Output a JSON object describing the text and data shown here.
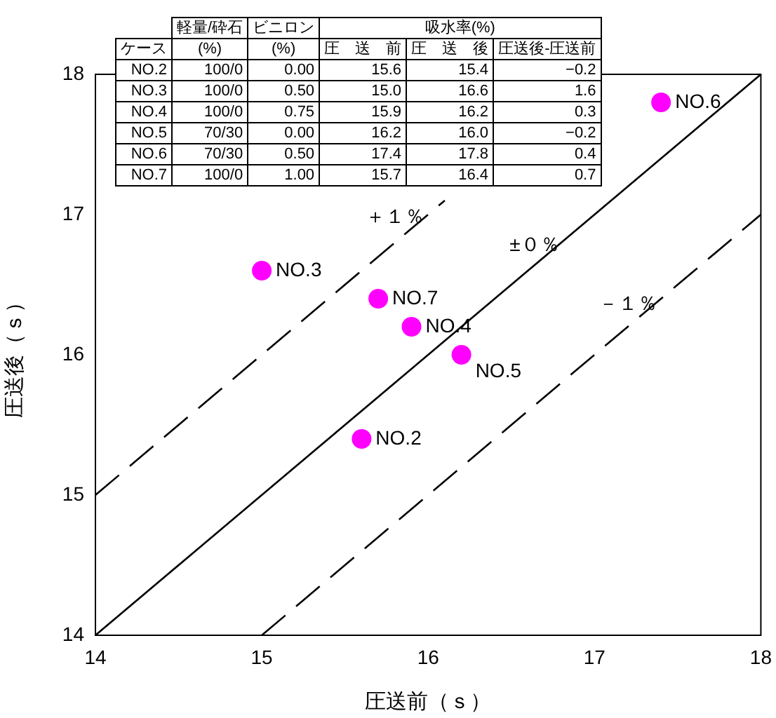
{
  "chart_data": {
    "type": "scatter",
    "xlabel": "圧送前（ｓ）",
    "ylabel": "圧送後（ｓ）",
    "xlim": [
      14,
      18
    ],
    "xticks": [
      14,
      15,
      16,
      17,
      18
    ],
    "ylim": [
      14,
      18
    ],
    "yticks": [
      14,
      15,
      16,
      17,
      18
    ],
    "grid": false,
    "legend": false,
    "series": [
      {
        "color": "#ff00ff",
        "marker": "circle",
        "x": [
          15.6,
          15.0,
          15.9,
          16.2,
          17.4,
          15.7
        ],
        "values": [
          15.4,
          16.6,
          16.2,
          16.0,
          17.8,
          16.4
        ]
      },
      {
        "type": "line",
        "color": "#000000",
        "marker": "none",
        "line_style": "solid",
        "x": [
          14,
          18
        ],
        "values": [
          14,
          18
        ]
      },
      {
        "type": "line",
        "color": "#000000",
        "marker": "none",
        "line_style": "dashed",
        "x": [
          14,
          16.1
        ],
        "values": [
          15,
          17.1
        ]
      },
      {
        "type": "line",
        "color": "#000000",
        "marker": "none",
        "line_style": "dashed",
        "x": [
          15,
          18
        ],
        "values": [
          14,
          17
        ]
      }
    ],
    "annotations": [
      {
        "text": "NO.2",
        "x": 15.6,
        "y": 15.4
      },
      {
        "text": "NO.3",
        "x": 15.0,
        "y": 16.6
      },
      {
        "text": "NO.4",
        "x": 15.9,
        "y": 16.2
      },
      {
        "text": "NO.5",
        "x": 16.2,
        "y": 16.0
      },
      {
        "text": "NO.6",
        "x": 17.4,
        "y": 17.8
      },
      {
        "text": "NO.7",
        "x": 15.7,
        "y": 16.4
      },
      "＋１％",
      "±０％",
      "－１％",
      "軽量/砕石",
      "ビニロン",
      "吸水率(%)",
      "ケース",
      "(%)",
      "(%)",
      "圧　送　前",
      "圧　送　後",
      "圧送後-圧送前",
      "NO.2",
      "100/0",
      "0.00",
      "15.6",
      "15.4",
      "−0.2",
      "NO.3",
      "100/0",
      "0.50",
      "15.0",
      "16.6",
      "1.6",
      "NO.4",
      "100/0",
      "0.75",
      "15.9",
      "16.2",
      "0.3",
      "NO.5",
      "70/30",
      "0.00",
      "16.2",
      "16.0",
      "−0.2",
      "NO.6",
      "70/30",
      "0.50",
      "17.4",
      "17.8",
      "0.4",
      "NO.7",
      "100/0",
      "1.00",
      "15.7",
      "16.4",
      "0.7"
    ]
  }
}
